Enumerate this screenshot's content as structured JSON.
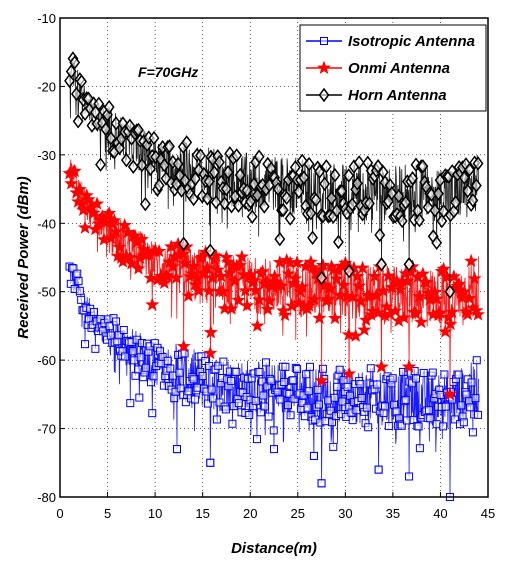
{
  "chart_data": {
    "type": "line",
    "title": "",
    "xlabel": "Distance(m)",
    "ylabel": "Received Power (dBm)",
    "xlim": [
      0,
      45
    ],
    "ylim": [
      -80,
      -10
    ],
    "xticks": [
      0,
      5,
      10,
      15,
      20,
      25,
      30,
      35,
      40,
      45
    ],
    "xtick_labels": [
      "0",
      "5",
      "10",
      "15",
      "20",
      "25",
      "30",
      "35",
      "40",
      "45"
    ],
    "yticks": [
      -80,
      -70,
      -60,
      -50,
      -40,
      -30,
      -20,
      -10
    ],
    "grid": true,
    "legend_position": "top-right",
    "annotation": "F=70GHz",
    "series": [
      {
        "name": "Isotropic Antenna",
        "color": "#0000ff",
        "marker": "square",
        "x": [
          1,
          2,
          3,
          4,
          5,
          7,
          10,
          13,
          15,
          20,
          25,
          27.5,
          30,
          35,
          40,
          41,
          44
        ],
        "y": [
          -47,
          -50,
          -53,
          -54.5,
          -56,
          -58,
          -60.5,
          -62,
          -63,
          -64,
          -64.5,
          -65,
          -65,
          -65.5,
          -65.5,
          -66,
          -64
        ],
        "min_dips": [
          [
            12.3,
            -73
          ],
          [
            15.8,
            -75
          ],
          [
            22.5,
            -73
          ],
          [
            26.7,
            -74
          ],
          [
            27.5,
            -78
          ],
          [
            33.5,
            -76
          ],
          [
            36.7,
            -77
          ],
          [
            41,
            -80
          ]
        ]
      },
      {
        "name": "Onmi Antenna",
        "color": "#ff0000",
        "marker": "star",
        "x": [
          1,
          2,
          3,
          4,
          5,
          7,
          10,
          13,
          15,
          20,
          25,
          27.5,
          30,
          35,
          40,
          41,
          44
        ],
        "y": [
          -32,
          -35,
          -38,
          -39.5,
          -41,
          -43,
          -45.5,
          -47,
          -48,
          -49,
          -49.5,
          -50,
          -50,
          -50.5,
          -50.5,
          -51,
          -49
        ],
        "min_dips": [
          [
            13,
            -58
          ],
          [
            15.8,
            -59
          ],
          [
            27.5,
            -63
          ],
          [
            30.4,
            -62
          ],
          [
            33.8,
            -61
          ],
          [
            36.7,
            -61
          ],
          [
            41,
            -65
          ]
        ]
      },
      {
        "name": "Horn Antenna",
        "color": "#000000",
        "marker": "diamond",
        "x": [
          1,
          2,
          3,
          4,
          5,
          7,
          10,
          13,
          15,
          20,
          25,
          27.5,
          30,
          35,
          40,
          41,
          44
        ],
        "y": [
          -17,
          -20,
          -23,
          -24.5,
          -26,
          -28,
          -30.5,
          -32,
          -33,
          -34,
          -34.5,
          -35,
          -35,
          -35.5,
          -35.5,
          -36,
          -34
        ],
        "min_dips": [
          [
            13,
            -43
          ],
          [
            15.8,
            -44
          ],
          [
            27.5,
            -48
          ],
          [
            30.4,
            -47
          ],
          [
            33.8,
            -46
          ],
          [
            36.7,
            -46
          ],
          [
            41,
            -50
          ]
        ]
      }
    ]
  }
}
